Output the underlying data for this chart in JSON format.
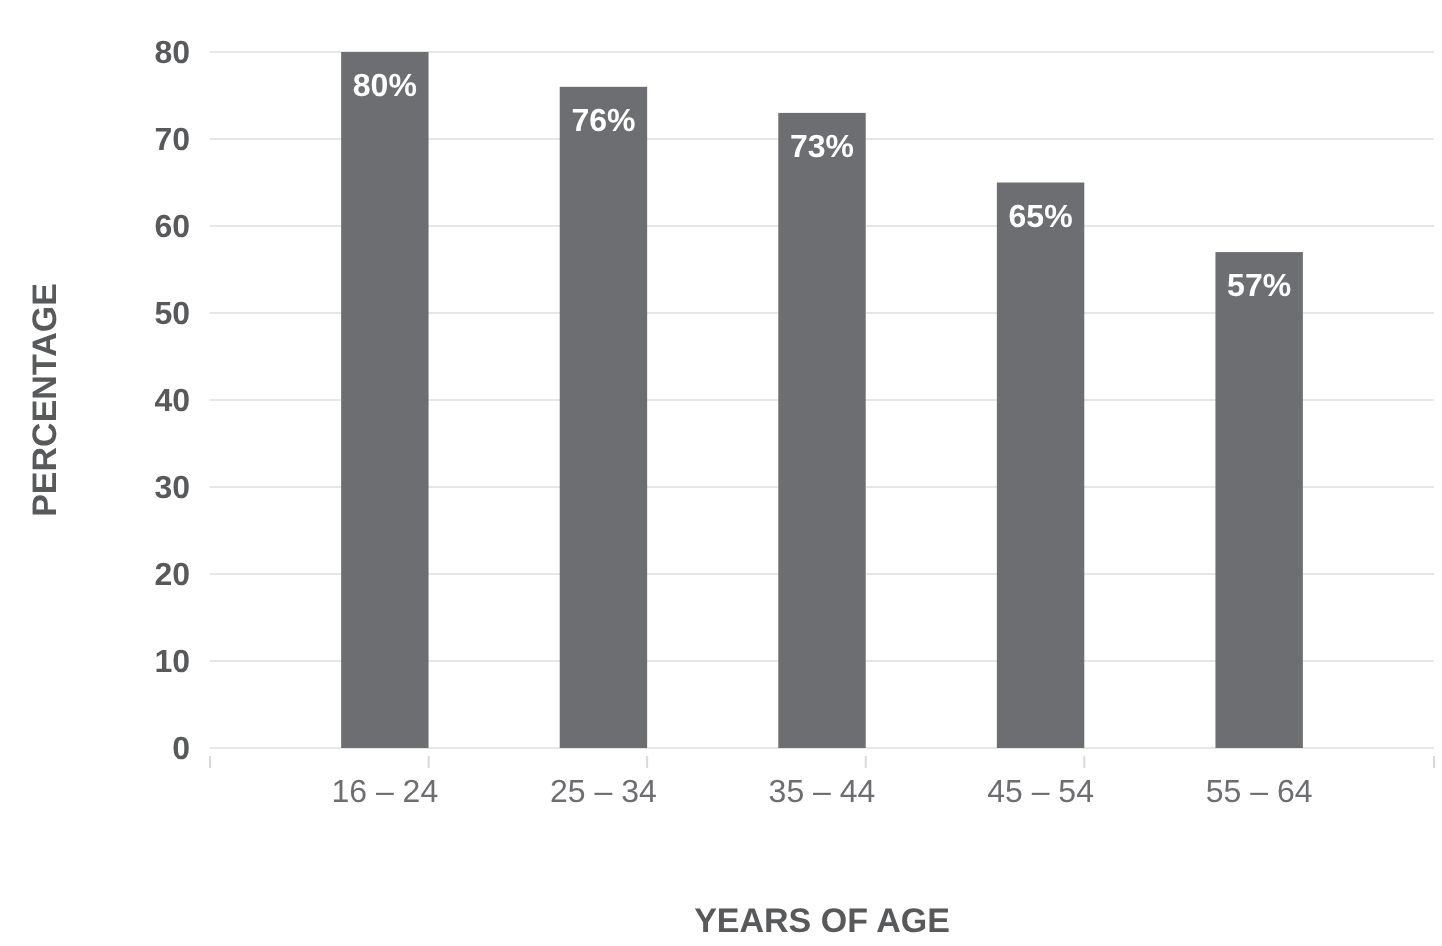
{
  "chart_data": {
    "type": "bar",
    "xlabel": "YEARS OF AGE",
    "ylabel": "PERCENTAGE",
    "categories": [
      "16 – 24",
      "25 – 34",
      "35 – 44",
      "45 – 54",
      "55 – 64"
    ],
    "values": [
      80,
      76,
      73,
      65,
      57
    ],
    "value_labels": [
      "80%",
      "76%",
      "73%",
      "65%",
      "57%"
    ],
    "color": "#6d6e71",
    "ylim": [
      0,
      80
    ],
    "yticks": [
      0,
      10,
      20,
      30,
      40,
      50,
      60,
      70,
      80
    ],
    "grid": "y"
  }
}
